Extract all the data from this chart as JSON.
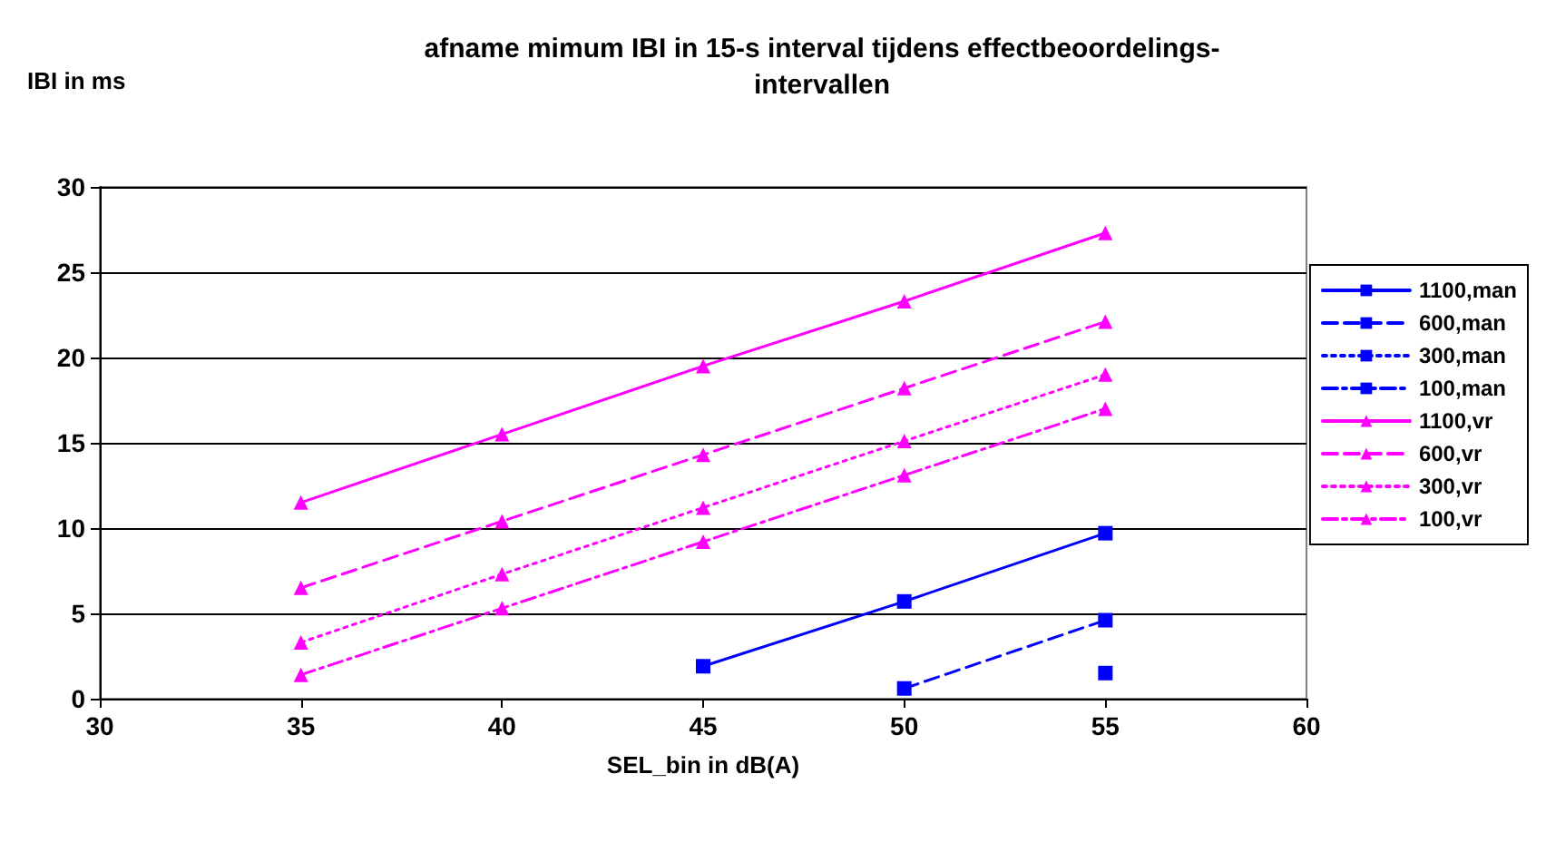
{
  "chart_data": {
    "type": "line",
    "title": "afname mimum IBI in 15-s interval tijdens effectbeoordelings-\nintervallen",
    "xlabel": "SEL_bin in dB(A)",
    "ylabel": "IBI in ms",
    "x": [
      35,
      40,
      45,
      50,
      55
    ],
    "xlim": [
      30,
      60
    ],
    "xticks": [
      30,
      35,
      40,
      45,
      50,
      55,
      60
    ],
    "ylim": [
      0,
      30
    ],
    "yticks": [
      0,
      5,
      10,
      15,
      20,
      25,
      30
    ],
    "grid": "y",
    "legend": "right",
    "series": [
      {
        "name": "1100,man",
        "color": "#0000ff",
        "marker": "square",
        "line_style": "solid",
        "values": [
          null,
          null,
          1.9,
          5.7,
          9.7
        ]
      },
      {
        "name": "600,man",
        "color": "#0000ff",
        "marker": "square",
        "line_style": "dashed",
        "values": [
          null,
          null,
          null,
          0.6,
          4.6
        ]
      },
      {
        "name": "300,man",
        "color": "#0000ff",
        "marker": "square",
        "line_style": "dotted",
        "values": [
          null,
          null,
          null,
          null,
          1.5
        ]
      },
      {
        "name": "100,man",
        "color": "#0000ff",
        "marker": "square",
        "line_style": "dashdot",
        "values": [
          null,
          null,
          null,
          null,
          null
        ]
      },
      {
        "name": "1100,vr",
        "color": "#ff00ff",
        "marker": "triangle",
        "line_style": "solid",
        "values": [
          11.5,
          15.5,
          19.5,
          23.3,
          27.3
        ]
      },
      {
        "name": "600,vr",
        "color": "#ff00ff",
        "marker": "triangle",
        "line_style": "dashed",
        "values": [
          6.5,
          10.4,
          14.3,
          18.2,
          22.1
        ]
      },
      {
        "name": "300,vr",
        "color": "#ff00ff",
        "marker": "triangle",
        "line_style": "dotted",
        "values": [
          3.3,
          7.3,
          11.2,
          15.1,
          19.0
        ]
      },
      {
        "name": "100,vr",
        "color": "#ff00ff",
        "marker": "triangle",
        "line_style": "dashdot",
        "values": [
          1.4,
          5.3,
          9.2,
          13.1,
          17.0
        ]
      }
    ]
  }
}
